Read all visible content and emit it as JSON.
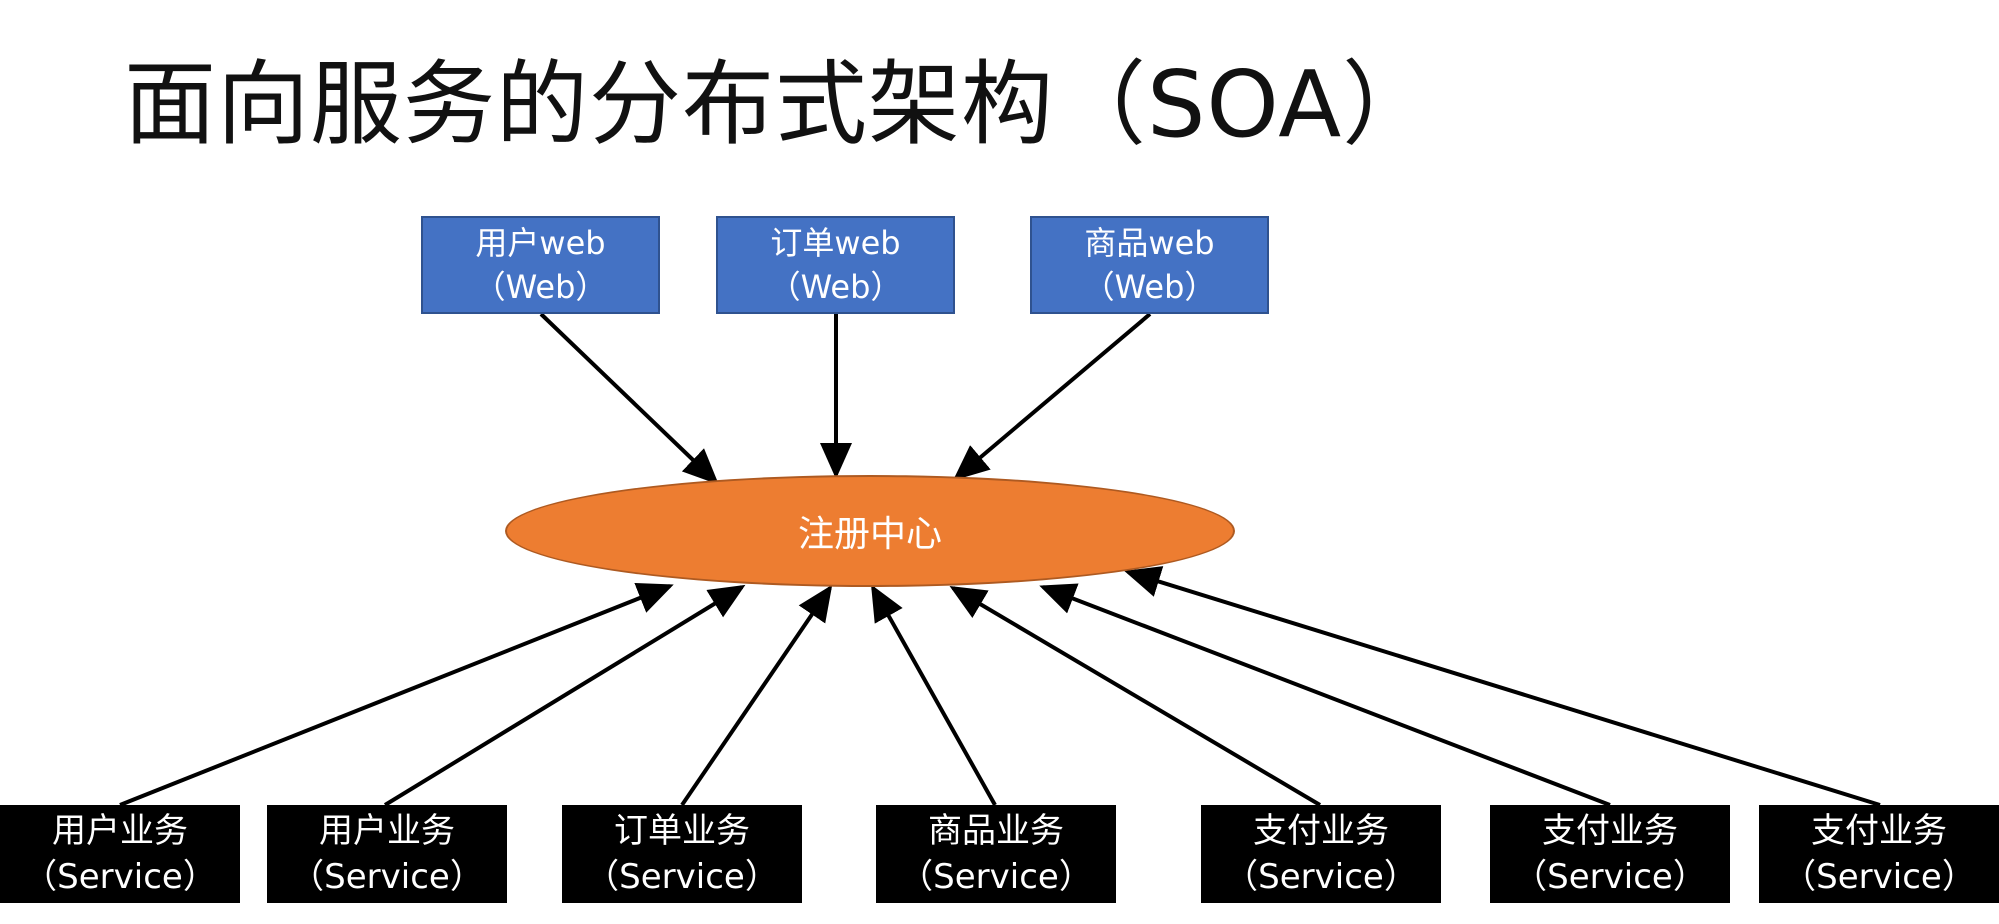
{
  "title": "面向服务的分布式架构（SOA）",
  "registry": {
    "label": "注册中心"
  },
  "web_nodes": [
    {
      "name": "用户web",
      "type": "（Web）"
    },
    {
      "name": "订单web",
      "type": "（Web）"
    },
    {
      "name": "商品web",
      "type": "（Web）"
    }
  ],
  "service_nodes": [
    {
      "name": "用户业务",
      "type": "（Service）"
    },
    {
      "name": "用户业务",
      "type": "（Service）"
    },
    {
      "name": "订单业务",
      "type": "（Service）"
    },
    {
      "name": "商品业务",
      "type": "（Service）"
    },
    {
      "name": "支付业务",
      "type": "（Service）"
    },
    {
      "name": "支付业务",
      "type": "（Service）"
    },
    {
      "name": "支付业务",
      "type": "（Service）"
    }
  ],
  "colors": {
    "web_fill": "#4472c4",
    "registry_fill": "#ed7d31",
    "service_fill": "#000000",
    "arrow": "#000000"
  }
}
